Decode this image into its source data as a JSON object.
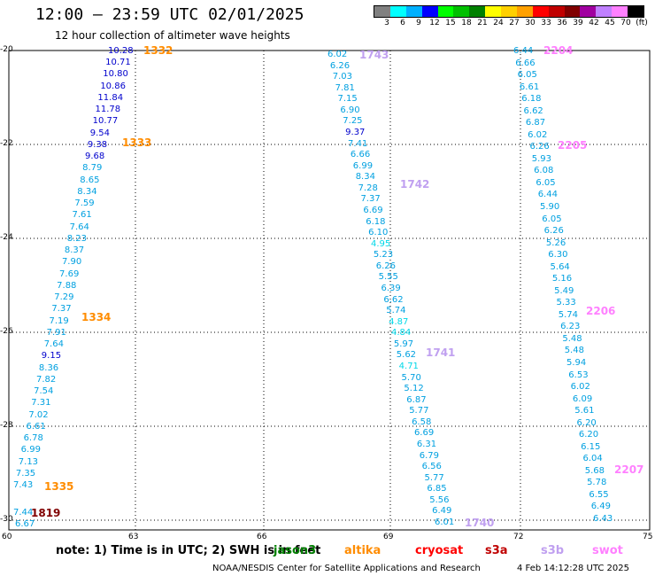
{
  "header": {
    "title": "12:00 — 23:59 UTC 02/01/2025",
    "subtitle": "12 hour collection of altimeter wave heights"
  },
  "colorbar": {
    "colors": [
      "#808080",
      "#00ffff",
      "#00b0ff",
      "#0000ff",
      "#00ff00",
      "#00c000",
      "#008000",
      "#ffff00",
      "#ffd000",
      "#ffa000",
      "#ff0000",
      "#c00000",
      "#800000",
      "#a000a0",
      "#c080ff",
      "#ff80ff",
      "#000000"
    ],
    "labels": [
      "3",
      "6",
      "9",
      "12",
      "15",
      "18",
      "21",
      "24",
      "27",
      "30",
      "33",
      "36",
      "39",
      "42",
      "45",
      "70",
      "(ft)"
    ]
  },
  "axes": {
    "y_labels": [
      "-20",
      "-22",
      "-24",
      "-26",
      "-28",
      "-30"
    ],
    "x_labels": [
      "60",
      "63",
      "66",
      "69",
      "72",
      "75"
    ]
  },
  "tracks": [
    {
      "name": "track-1332-1335",
      "labels": [
        {
          "text": "1332",
          "color": "#ff8c00"
        },
        {
          "text": "1333",
          "color": "#ff8c00"
        },
        {
          "text": "1334",
          "color": "#ff8c00"
        },
        {
          "text": "1335",
          "color": "#ff8c00"
        }
      ],
      "readings": [
        {
          "v": "10.28",
          "c": "#0000cc"
        },
        {
          "v": "10.71",
          "c": "#0000cc"
        },
        {
          "v": "10.80",
          "c": "#0000cc"
        },
        {
          "v": "10.86",
          "c": "#0000cc"
        },
        {
          "v": "11.84",
          "c": "#0000cc"
        },
        {
          "v": "11.78",
          "c": "#0000cc"
        },
        {
          "v": "10.77",
          "c": "#0000cc"
        },
        {
          "v": "9.54",
          "c": "#0000cc"
        },
        {
          "v": "9.38",
          "c": "#0000cc"
        },
        {
          "v": "9.68",
          "c": "#0000cc"
        },
        {
          "v": "8.79",
          "c": "#00a0e0"
        },
        {
          "v": "8.65",
          "c": "#00a0e0"
        },
        {
          "v": "8.34",
          "c": "#00a0e0"
        },
        {
          "v": "7.59",
          "c": "#00a0e0"
        },
        {
          "v": "7.61",
          "c": "#00a0e0"
        },
        {
          "v": "7.64",
          "c": "#00a0e0"
        },
        {
          "v": "8.23",
          "c": "#00a0e0"
        },
        {
          "v": "8.37",
          "c": "#00a0e0"
        },
        {
          "v": "7.90",
          "c": "#00a0e0"
        },
        {
          "v": "7.69",
          "c": "#00a0e0"
        },
        {
          "v": "7.88",
          "c": "#00a0e0"
        },
        {
          "v": "7.29",
          "c": "#00a0e0"
        },
        {
          "v": "7.37",
          "c": "#00a0e0"
        },
        {
          "v": "7.19",
          "c": "#00a0e0"
        },
        {
          "v": "7.91",
          "c": "#00a0e0"
        },
        {
          "v": "7.64",
          "c": "#00a0e0"
        },
        {
          "v": "9.15",
          "c": "#0000cc"
        },
        {
          "v": "8.36",
          "c": "#00a0e0"
        },
        {
          "v": "7.82",
          "c": "#00a0e0"
        },
        {
          "v": "7.54",
          "c": "#00a0e0"
        },
        {
          "v": "7.31",
          "c": "#00a0e0"
        },
        {
          "v": "7.02",
          "c": "#00a0e0"
        },
        {
          "v": "6.61",
          "c": "#00a0e0"
        },
        {
          "v": "6.78",
          "c": "#00a0e0"
        },
        {
          "v": "6.99",
          "c": "#00a0e0"
        },
        {
          "v": "7.13",
          "c": "#00a0e0"
        },
        {
          "v": "7.35",
          "c": "#00a0e0"
        },
        {
          "v": "7.43",
          "c": "#00a0e0"
        }
      ]
    },
    {
      "name": "track-1819",
      "labels": [
        {
          "text": "1819",
          "color": "#800000"
        }
      ],
      "readings": [
        {
          "v": "7.44",
          "c": "#00a0e0"
        },
        {
          "v": "6.67",
          "c": "#00a0e0"
        }
      ]
    },
    {
      "name": "track-1743-1740",
      "labels": [
        {
          "text": "1743",
          "color": "#c0a0f0"
        },
        {
          "text": "1742",
          "color": "#c0a0f0"
        },
        {
          "text": "1741",
          "color": "#c0a0f0"
        },
        {
          "text": "1740",
          "color": "#c0a0f0"
        }
      ],
      "readings": [
        {
          "v": "6.02",
          "c": "#00a0e0"
        },
        {
          "v": "6.26",
          "c": "#00a0e0"
        },
        {
          "v": "7.03",
          "c": "#00a0e0"
        },
        {
          "v": "7.81",
          "c": "#00a0e0"
        },
        {
          "v": "7.15",
          "c": "#00a0e0"
        },
        {
          "v": "6.90",
          "c": "#00a0e0"
        },
        {
          "v": "7.25",
          "c": "#00a0e0"
        },
        {
          "v": "9.37",
          "c": "#0000cc"
        },
        {
          "v": "7.41",
          "c": "#00a0e0"
        },
        {
          "v": "6.66",
          "c": "#00a0e0"
        },
        {
          "v": "6.99",
          "c": "#00a0e0"
        },
        {
          "v": "8.34",
          "c": "#00a0e0"
        },
        {
          "v": "7.28",
          "c": "#00a0e0"
        },
        {
          "v": "7.37",
          "c": "#00a0e0"
        },
        {
          "v": "6.69",
          "c": "#00a0e0"
        },
        {
          "v": "6.18",
          "c": "#00a0e0"
        },
        {
          "v": "6.10",
          "c": "#00a0e0"
        },
        {
          "v": "4.95",
          "c": "#00d8e8"
        },
        {
          "v": "5.23",
          "c": "#00a0e0"
        },
        {
          "v": "6.26",
          "c": "#00a0e0"
        },
        {
          "v": "5.55",
          "c": "#00a0e0"
        },
        {
          "v": "6.39",
          "c": "#00a0e0"
        },
        {
          "v": "6.62",
          "c": "#00a0e0"
        },
        {
          "v": "5.74",
          "c": "#00a0e0"
        },
        {
          "v": "4.87",
          "c": "#00d8e8"
        },
        {
          "v": "4.84",
          "c": "#00d8e8"
        },
        {
          "v": "5.97",
          "c": "#00a0e0"
        },
        {
          "v": "5.62",
          "c": "#00a0e0"
        },
        {
          "v": "4.71",
          "c": "#00d8e8"
        },
        {
          "v": "5.70",
          "c": "#00a0e0"
        },
        {
          "v": "5.12",
          "c": "#00a0e0"
        },
        {
          "v": "6.87",
          "c": "#00a0e0"
        },
        {
          "v": "5.77",
          "c": "#00a0e0"
        },
        {
          "v": "6.58",
          "c": "#00a0e0"
        },
        {
          "v": "6.69",
          "c": "#00a0e0"
        },
        {
          "v": "6.31",
          "c": "#00a0e0"
        },
        {
          "v": "6.79",
          "c": "#00a0e0"
        },
        {
          "v": "6.56",
          "c": "#00a0e0"
        },
        {
          "v": "5.77",
          "c": "#00a0e0"
        },
        {
          "v": "6.85",
          "c": "#00a0e0"
        },
        {
          "v": "5.56",
          "c": "#00a0e0"
        },
        {
          "v": "6.49",
          "c": "#00a0e0"
        },
        {
          "v": "6.01",
          "c": "#00a0e0"
        }
      ]
    },
    {
      "name": "track-2204-2207",
      "labels": [
        {
          "text": "2204",
          "color": "#ff80ff"
        },
        {
          "text": "2205",
          "color": "#ff80ff"
        },
        {
          "text": "2206",
          "color": "#ff80ff"
        },
        {
          "text": "2207",
          "color": "#ff80ff"
        }
      ],
      "readings": [
        {
          "v": "6.44",
          "c": "#00a0e0"
        },
        {
          "v": "6.66",
          "c": "#00a0e0"
        },
        {
          "v": "6.05",
          "c": "#00a0e0"
        },
        {
          "v": "6.61",
          "c": "#00a0e0"
        },
        {
          "v": "6.18",
          "c": "#00a0e0"
        },
        {
          "v": "6.62",
          "c": "#00a0e0"
        },
        {
          "v": "6.87",
          "c": "#00a0e0"
        },
        {
          "v": "6.02",
          "c": "#00a0e0"
        },
        {
          "v": "6.26",
          "c": "#00a0e0"
        },
        {
          "v": "5.93",
          "c": "#00a0e0"
        },
        {
          "v": "6.08",
          "c": "#00a0e0"
        },
        {
          "v": "6.05",
          "c": "#00a0e0"
        },
        {
          "v": "6.44",
          "c": "#00a0e0"
        },
        {
          "v": "5.90",
          "c": "#00a0e0"
        },
        {
          "v": "6.05",
          "c": "#00a0e0"
        },
        {
          "v": "6.26",
          "c": "#00a0e0"
        },
        {
          "v": "5.26",
          "c": "#00a0e0"
        },
        {
          "v": "6.30",
          "c": "#00a0e0"
        },
        {
          "v": "5.64",
          "c": "#00a0e0"
        },
        {
          "v": "5.16",
          "c": "#00a0e0"
        },
        {
          "v": "5.49",
          "c": "#00a0e0"
        },
        {
          "v": "5.33",
          "c": "#00a0e0"
        },
        {
          "v": "5.74",
          "c": "#00a0e0"
        },
        {
          "v": "6.23",
          "c": "#00a0e0"
        },
        {
          "v": "5.48",
          "c": "#00a0e0"
        },
        {
          "v": "5.48",
          "c": "#00a0e0"
        },
        {
          "v": "5.94",
          "c": "#00a0e0"
        },
        {
          "v": "6.53",
          "c": "#00a0e0"
        },
        {
          "v": "6.02",
          "c": "#00a0e0"
        },
        {
          "v": "6.09",
          "c": "#00a0e0"
        },
        {
          "v": "5.61",
          "c": "#00a0e0"
        },
        {
          "v": "6.20",
          "c": "#00a0e0"
        },
        {
          "v": "6.20",
          "c": "#00a0e0"
        },
        {
          "v": "6.15",
          "c": "#00a0e0"
        },
        {
          "v": "6.04",
          "c": "#00a0e0"
        },
        {
          "v": "5.68",
          "c": "#00a0e0"
        },
        {
          "v": "5.78",
          "c": "#00a0e0"
        },
        {
          "v": "6.55",
          "c": "#00a0e0"
        },
        {
          "v": "6.49",
          "c": "#00a0e0"
        },
        {
          "v": "6.43",
          "c": "#00a0e0"
        }
      ]
    }
  ],
  "footer": {
    "note": "note:  1) Time is in UTC; 2) SWH is in feet",
    "satellites": [
      {
        "name": "jason3",
        "color": "#008000"
      },
      {
        "name": "altika",
        "color": "#ff8c00"
      },
      {
        "name": "cryosat",
        "color": "#ff0000"
      },
      {
        "name": "s3a",
        "color": "#c00000"
      },
      {
        "name": "s3b",
        "color": "#c0a0f0"
      },
      {
        "name": "swot",
        "color": "#ff80ff"
      }
    ],
    "credit": "NOAA/NESDIS Center for Satellite Applications and Research",
    "timestamp": "4 Feb 14:12:28 UTC 2025"
  }
}
